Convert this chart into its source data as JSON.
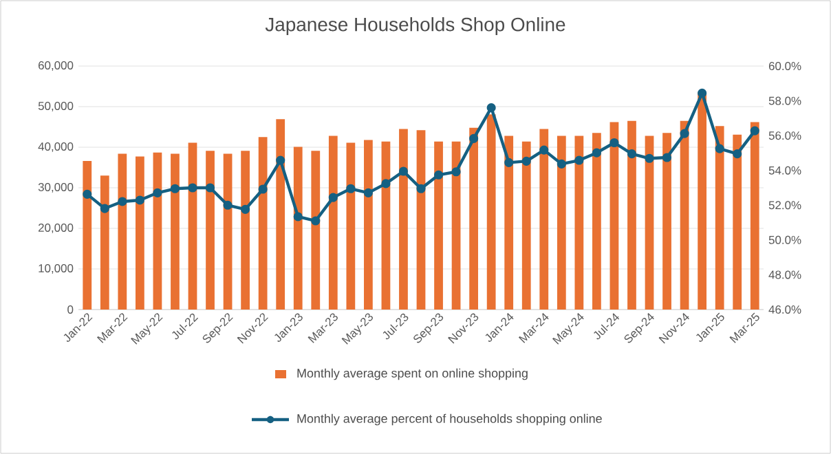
{
  "chart_data": {
    "type": "bar",
    "title": "Japanese Households Shop Online",
    "categories": [
      "Jan-22",
      null,
      "Mar-22",
      null,
      "May-22",
      null,
      "Jul-22",
      null,
      "Sep-22",
      null,
      "Nov-22",
      null,
      "Jan-23",
      null,
      "Mar-23",
      null,
      "May-23",
      null,
      "Jul-23",
      null,
      "Sep-23",
      null,
      "Nov-23",
      null,
      "Jan-24",
      null,
      "Mar-24",
      null,
      "May-24",
      null,
      "Jul-24",
      null,
      "Sep-24",
      null,
      "Nov-24",
      null,
      "Jan-25",
      null,
      "Mar-25"
    ],
    "series": [
      {
        "name": "Monthly average spent on online shopping",
        "color": "#e97132",
        "values": [
          36600,
          33000,
          38400,
          37700,
          38700,
          38400,
          41100,
          39100,
          38400,
          39100,
          42500,
          46900,
          40100,
          39100,
          42800,
          41100,
          41800,
          41400,
          44500,
          44200,
          41400,
          41400,
          44800,
          48100,
          42800,
          41400,
          44500,
          42800,
          42800,
          43500,
          46200,
          46500,
          42800,
          43500,
          46500,
          53500,
          45200,
          43100,
          46200
        ]
      },
      {
        "name": "Monthly average percent of households shopping online",
        "type": "line",
        "axis": "y2",
        "color": "#156082",
        "marker": "circle",
        "values": [
          52.63,
          51.81,
          52.21,
          52.29,
          52.71,
          52.95,
          53.0,
          53.0,
          52.0,
          51.76,
          52.92,
          54.58,
          51.34,
          51.1,
          52.44,
          52.95,
          52.71,
          53.24,
          53.95,
          52.95,
          53.74,
          53.92,
          55.83,
          57.6,
          54.45,
          54.53,
          55.17,
          54.37,
          54.58,
          55.01,
          55.59,
          54.95,
          54.69,
          54.74,
          56.12,
          58.44,
          55.25,
          54.95,
          56.28
        ]
      }
    ],
    "ylim": [
      0,
      60000
    ],
    "yticks": [
      0,
      {
        "value": 10000,
        "label": "10,000"
      },
      {
        "value": 20000,
        "label": "20,000"
      },
      {
        "value": 30000,
        "label": "30,000"
      },
      {
        "value": 40000,
        "label": "40,000"
      },
      {
        "value": 50000,
        "label": "50,000"
      },
      {
        "value": 60000,
        "label": "60,000"
      }
    ],
    "y2lim": [
      46,
      60
    ],
    "y2ticks": [
      {
        "value": 46,
        "label": "46.0%"
      },
      {
        "value": 48,
        "label": "48.0%"
      },
      {
        "value": 50,
        "label": "50.0%"
      },
      {
        "value": 52,
        "label": "52.0%"
      },
      {
        "value": 54,
        "label": "54.0%"
      },
      {
        "value": 56,
        "label": "56.0%"
      },
      {
        "value": 58,
        "label": "58.0%"
      },
      {
        "value": 60,
        "label": "60.0%"
      }
    ],
    "grid": "y",
    "legend": "bottom"
  }
}
